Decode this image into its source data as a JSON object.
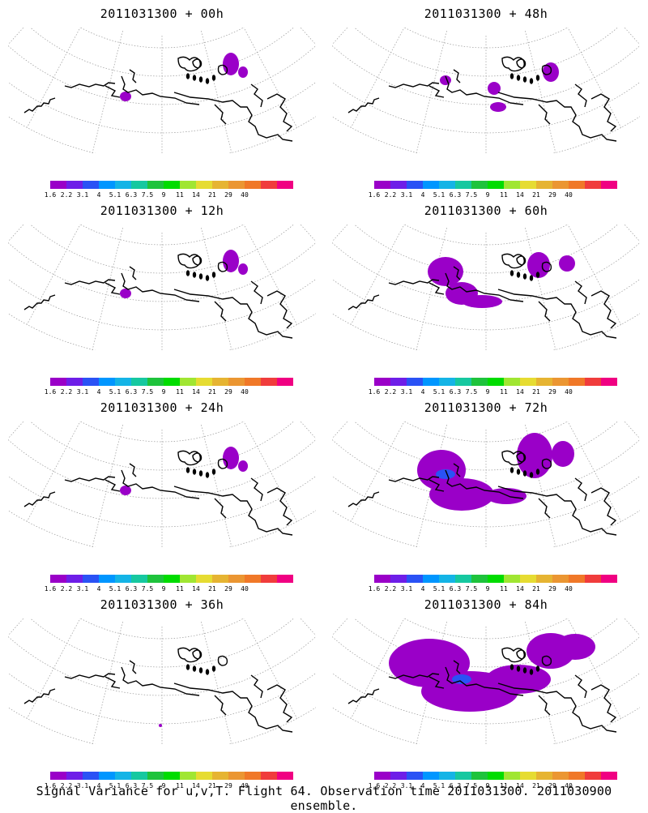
{
  "panels": [
    {
      "title": "2011031300 + 00h",
      "level": 1
    },
    {
      "title": "2011031300 + 48h",
      "level": 2
    },
    {
      "title": "2011031300 + 12h",
      "level": 1
    },
    {
      "title": "2011031300 + 60h",
      "level": 3
    },
    {
      "title": "2011031300 + 24h",
      "level": 1
    },
    {
      "title": "2011031300 + 72h",
      "level": 4
    },
    {
      "title": "2011031300 + 36h",
      "level": 0
    },
    {
      "title": "2011031300 + 84h",
      "level": 5
    }
  ],
  "colorbar": {
    "colors": [
      "#9a00c8",
      "#6e1ee8",
      "#2a52f5",
      "#0096ff",
      "#14b4e6",
      "#16c8a0",
      "#1ec33c",
      "#00dc00",
      "#a0e632",
      "#e6dc32",
      "#e6b432",
      "#eb9632",
      "#f07828",
      "#f03c3c",
      "#f00082"
    ],
    "labels": [
      "1.6",
      "2.2",
      "3.1",
      "4",
      "5.1",
      "6.3",
      "7.5",
      "9",
      "11",
      "14",
      "21",
      "29",
      "40"
    ]
  },
  "caption": "Signal Variance for u,v,T. Flight 64. Observation time 2011031300. 2011030900 ensemble."
}
